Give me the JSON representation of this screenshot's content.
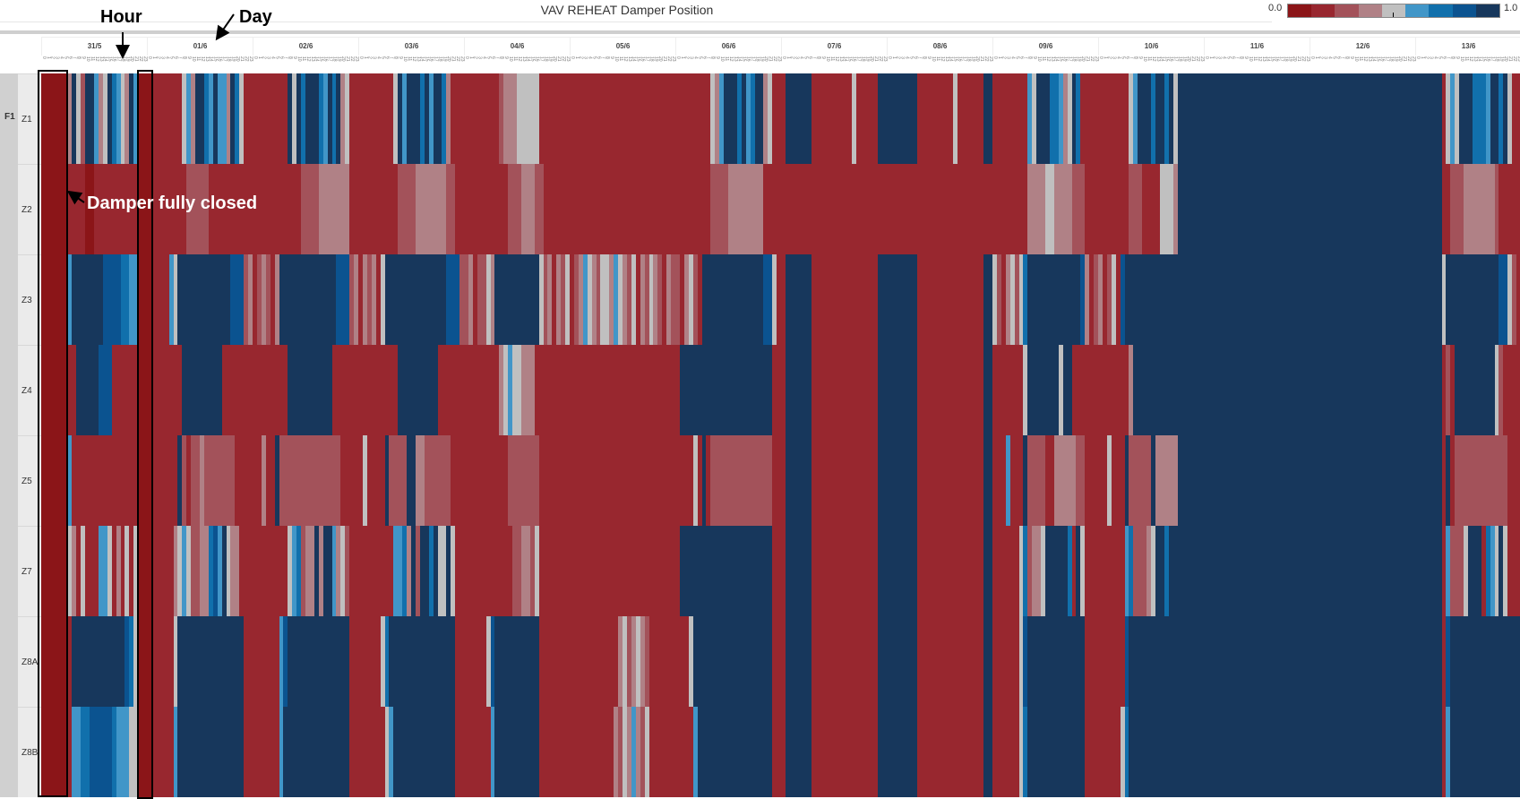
{
  "title": "VAV REHEAT Damper Position",
  "legend": {
    "min_label": "0.0",
    "max_label": "1.0",
    "colors": [
      "#8b1518",
      "#98272f",
      "#a3525a",
      "#b08186",
      "#c0c0c0",
      "#4196c8",
      "#1170ac",
      "#0b5390",
      "#17375c"
    ]
  },
  "annotations": {
    "hour": "Hour",
    "day": "Day",
    "closed": "Damper fully closed"
  },
  "chart_data": {
    "type": "heatmap",
    "title": "VAV REHEAT Damper Position",
    "value_range": [
      0.0,
      1.0
    ],
    "encoding": "Run-length encoded hourly color-bin index 0-8 (0 = 0.0 fully closed, 8 = 1.0 fully open); 'LxN' = level L repeated N hours",
    "group": "F1",
    "days": [
      "31/5",
      "01/6",
      "02/6",
      "03/6",
      "04/6",
      "05/6",
      "06/6",
      "07/6",
      "08/6",
      "09/6",
      "10/6",
      "11/6",
      "12/6",
      "13/6"
    ],
    "hours": [
      "0",
      "1",
      "2",
      "3",
      "4",
      "5",
      "6",
      "7",
      "8",
      "9",
      "10",
      "11",
      "12",
      "13",
      "14",
      "15",
      "16",
      "17",
      "18",
      "19",
      "20",
      "21",
      "22",
      "23"
    ],
    "rows": [
      {
        "name": "Z1",
        "data": "0x6,3,8,4,2,8,8,5,3,4,8,6,5,4,3,8,5,0x3,1x7,4,5,3,8,8,6,5,8,5,5,3,8,6,4,1x10,8,4,8,6,8,8,8,6,5,8,6,8,3,4,1x10,4,8,5,8,8,8,6,8,5,8,8,6,3,1,1x10,2,3,3,3,4,4,4,4,4,1x39,4,3,5,8,8,8,6,8,5,6,8,8,3,4,1x3,8x6,1x9,4,1x5,8x9,1x8,4,1x6,8x2,1x8,5,4,8,8,8,6,6,5,3,4,8,6,1,1x10,4,5,8,8,8,6,8,8,6,8,4,8x60,1,4,5,4,8,8,8,6,6,6,5,8,8,6,8,4,1x2"
      },
      {
        "name": "Z2",
        "data": "0x6,1x4,0x2,1x10,0x3,1x8,2x5,1x21,2x4,3x7,1x11,2x4,3x7,2x2,1x12,2x3,3x3,2x2,1x38,2x4,3x8,1x60,3x4,4x2,3x4,2x3,1x10,2x3,1x4,4x3,3,8x60,1x2,2x3,3x7,2,1x5"
      },
      {
        "name": "Z3",
        "data": "0x6,5,8x7,7x4,6x2,5x2,0x3,1x4,5,4,8x12,7x3,2,3,1,2,3,2,1,3,8x13,7x3,2,3,1,3,2,3,1,4,8x14,7x3,2,2,3,1,2,2,4,3,8x10,4,2,3,1,3,2,4,1,2,3,5,4,3,2,4,4,3,5,4,3,2,4,1,3,2,4,3,2,1,3,2,2,1,3,4,2,1,8x14,7x2,4,1,1,8x6,1x15,8x9,1x15,8x2,4,2,1,3,4,2,4,6,8x12,7,3,1,2,3,1,2,4,1,7,8x72,4,8x12,7x2,4,2,1"
      },
      {
        "name": "Z4",
        "data": "0x6,1x2,8x5,7x3,1x6,0x3,1x7,8x9,1x15,8x10,1x15,8x9,1x14,3,4,5,4,4,3,3,3,1,1x32,8x21,1x3,8x6,1x15,8x9,1x15,8x2,1x7,4,8x7,4,8,8,1x13,3,8x70,1,2,1,8x9,4,2,1x4"
      },
      {
        "name": "Z5",
        "data": "0x6,5,1x15,0x3,1x6,8,2,1,2,2,3,2x7,1x6,3,1x2,8,2x14,1x5,4,1x4,8,2x4,8x2,3x2,2x6,1x13,2x7,1x35,4,1,8,1,2x14,1x3,8x6,1x15,8x9,1x15,8x2,1x3,5,1x3,8,2x4,1x2,3x5,2x2,1x5,4,1x3,8,2x5,8,3x5,8x60,1,8,1,2x12,1x3"
      },
      {
        "name": "Z7",
        "data": "0x6,4,3,1,4,1,1,1,5,5,4,1,3,1,4,1,4,0x3,1x5,3,4,5,4,2,2,3,3,6,7,5,8,4,3,3,1,1x10,4,5,6,2,3,3,8,3,8,8,5,3,4,2,1x10,5,5,6,3,8,2,8,8,6,8,4,4,8,4,1x13,2,2,3,3,2,4,1x32,8x21,1x3,8x6,1x15,8x9,1x15,8x2,1x6,4,6,2,3,3,4,8,8x4,6,1,8,4,1x9,5,6,2,2,2,3,4,8,8,6,8x62,1,5,2,2,2,4,8,8,8,1,6,5,4,8,4,1x3"
      },
      {
        "name": "Z8A",
        "data": "0x6,1,8x12,7,6,4,0x3,1x5,4,8x15,1x8,5,7,8x14,1x7,4,6,8x15,1x7,4,7,8x10,1x18,3,4,2,3,4,3,2,1x9,4,8x18,1x3,8x6,1x15,8x9,1x15,8x2,1x6,4,7,8x13,1x9,7,8x71,1,7,8x16"
      },
      {
        "name": "Z8B",
        "data": "0x6,1,5,5,6,6,7,7,7,7,7,6,5,5,5,4,4,0x3,1x5,5,8x15,1x8,5,8x15,1x8,4,5,8x14,1x8,5,8x10,1x17,3,2,4,3,5,3,2,4,1x10,5,8x17,1x3,8x6,1x15,8x9,1x15,8x2,1x6,4,6,8x13,1x8,4,6,8x71,1,5,8x16"
      }
    ]
  }
}
